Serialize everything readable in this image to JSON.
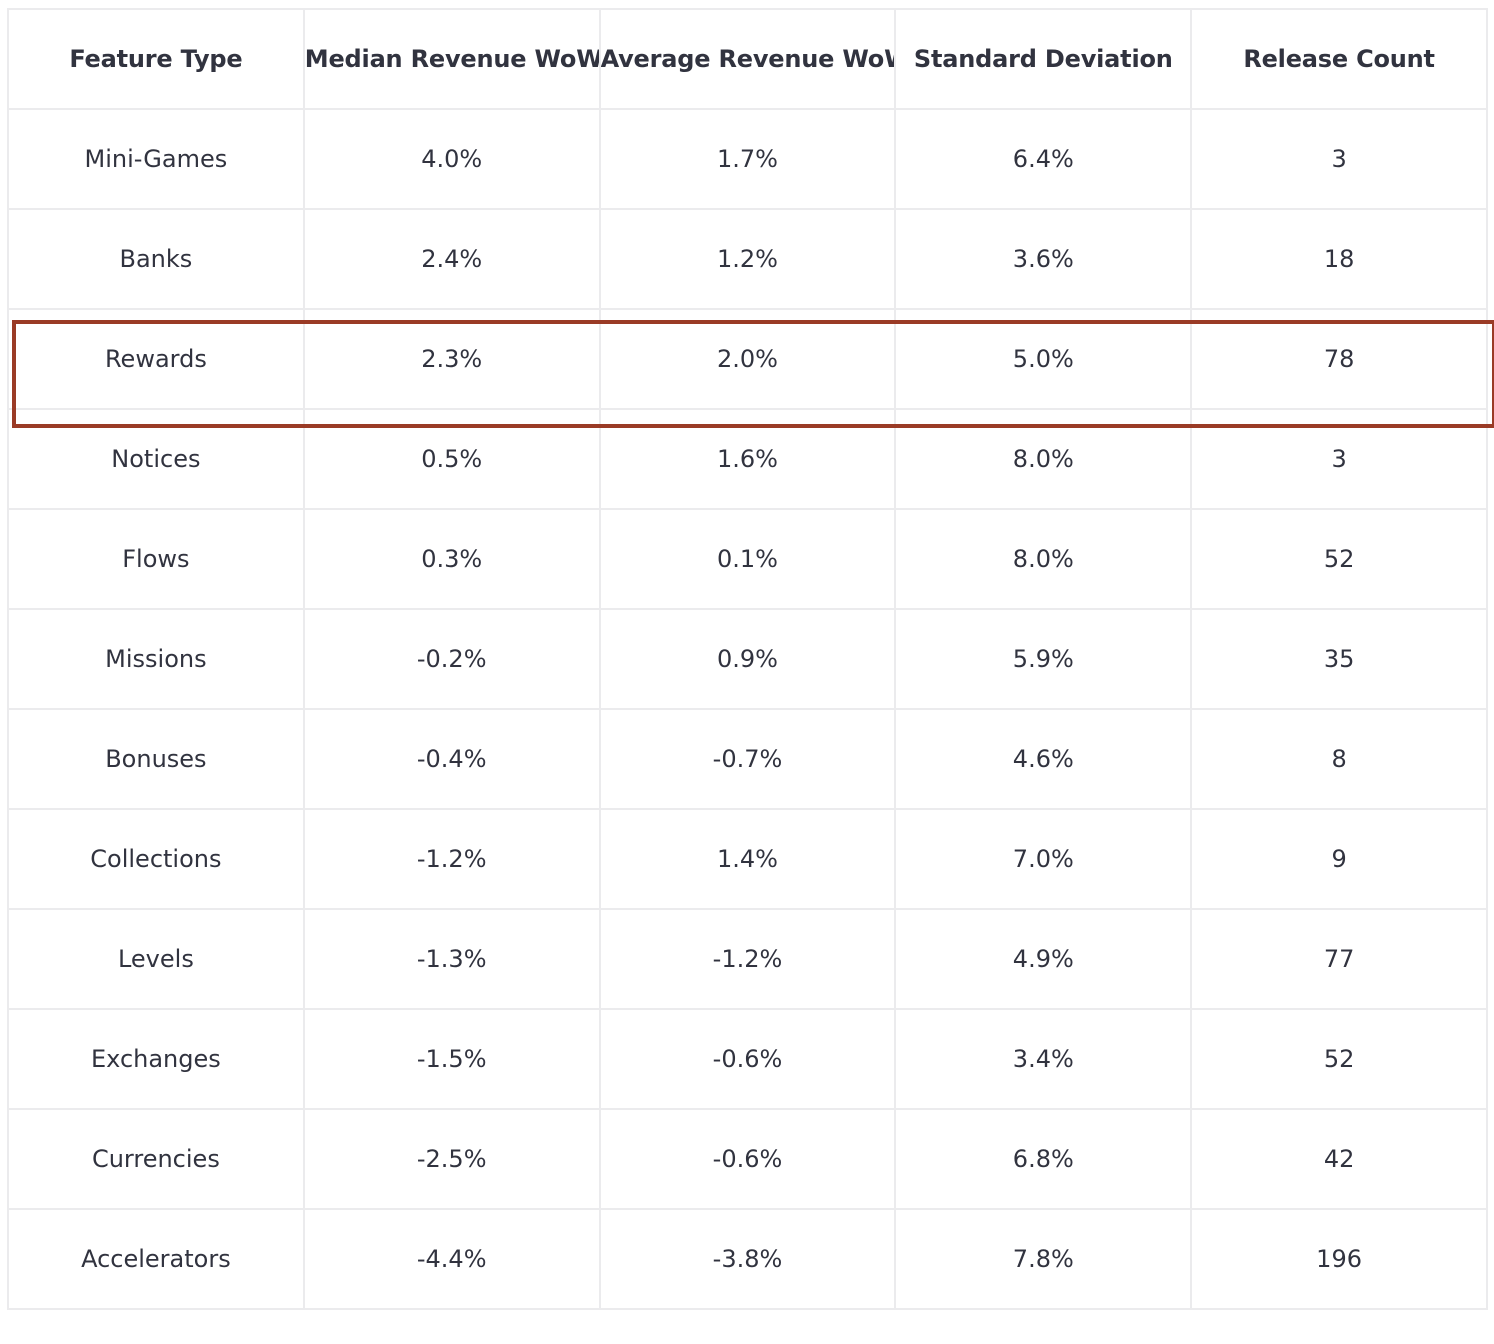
{
  "highlight_color": "#9a3b26",
  "highlighted_row": "Rewards",
  "chart_data": {
    "type": "table",
    "columns": [
      "Feature Type",
      "Median Revenue WoW",
      "Average Revenue WoW",
      "Standard Deviation",
      "Release Count"
    ],
    "rows": [
      [
        "Mini-Games",
        "4.0%",
        "1.7%",
        "6.4%",
        "3"
      ],
      [
        "Banks",
        "2.4%",
        "1.2%",
        "3.6%",
        "18"
      ],
      [
        "Rewards",
        "2.3%",
        "2.0%",
        "5.0%",
        "78"
      ],
      [
        "Notices",
        "0.5%",
        "1.6%",
        "8.0%",
        "3"
      ],
      [
        "Flows",
        "0.3%",
        "0.1%",
        "8.0%",
        "52"
      ],
      [
        "Missions",
        "-0.2%",
        "0.9%",
        "5.9%",
        "35"
      ],
      [
        "Bonuses",
        "-0.4%",
        "-0.7%",
        "4.6%",
        "8"
      ],
      [
        "Collections",
        "-1.2%",
        "1.4%",
        "7.0%",
        "9"
      ],
      [
        "Levels",
        "-1.3%",
        "-1.2%",
        "4.9%",
        "77"
      ],
      [
        "Exchanges",
        "-1.5%",
        "-0.6%",
        "3.4%",
        "52"
      ],
      [
        "Currencies",
        "-2.5%",
        "-0.6%",
        "6.8%",
        "42"
      ],
      [
        "Accelerators",
        "-4.4%",
        "-3.8%",
        "7.8%",
        "196"
      ]
    ]
  }
}
